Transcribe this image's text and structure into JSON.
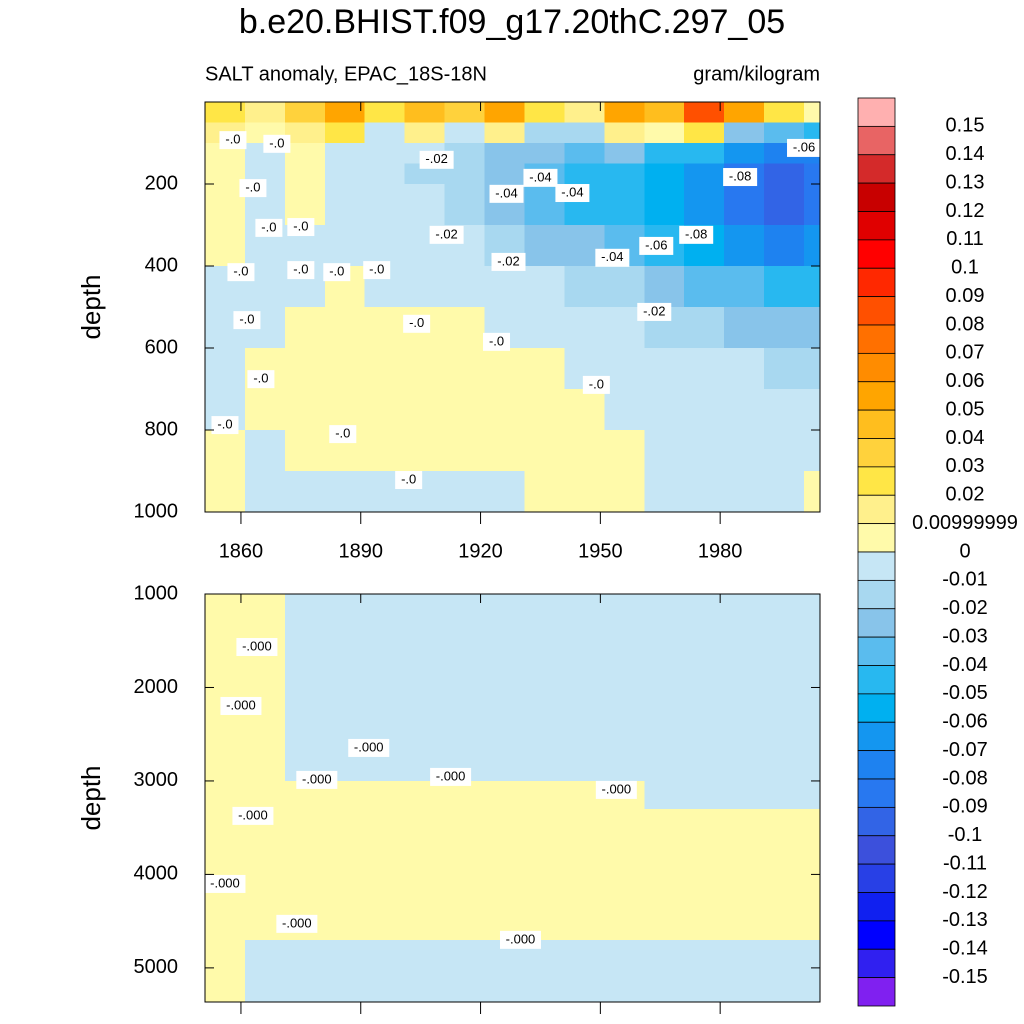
{
  "title": "b.e20.BHIST.f09_g17.20thC.297_05",
  "colorbar": {
    "levels": [
      0.15,
      0.14,
      0.13,
      0.12,
      0.11,
      0.1,
      0.09,
      0.08,
      0.07,
      0.06,
      0.05,
      0.04,
      0.03,
      0.02,
      {
        "value": 0.01,
        "label": "0.00999999"
      },
      0,
      -0.01,
      -0.02,
      -0.03,
      -0.04,
      -0.05,
      -0.06,
      -0.07,
      -0.08,
      -0.09,
      -0.1,
      -0.11,
      -0.12,
      -0.13,
      -0.14,
      -0.15
    ],
    "colors": [
      "#ffb0b0",
      "#e86464",
      "#d42a2a",
      "#c80000",
      "#e00000",
      "#ff0000",
      "#ff2800",
      "#ff5000",
      "#ff7000",
      "#ff8c00",
      "#ffa500",
      "#ffbe1e",
      "#ffd23c",
      "#ffe646",
      "#fff08c",
      "#fffaaa",
      "#c6e6f5",
      "#a8d8f0",
      "#88c4ea",
      "#5abcee",
      "#28b8f0",
      "#00b0f0",
      "#1496f0",
      "#1e82f0",
      "#2878f0",
      "#3264e6",
      "#3c50dc",
      "#2840e6",
      "#1020f0",
      "#0000ff",
      "#3020f0",
      "#8020f0"
    ]
  },
  "chart_data": [
    {
      "type": "contour",
      "subtitle_left": "SALT anomaly, EPAC_18S-18N",
      "subtitle_right": "gram/kilogram",
      "ylabel": "depth",
      "xlim": [
        1851,
        2005
      ],
      "xticks": [
        1860,
        1890,
        1920,
        1950,
        1980
      ],
      "ylim": [
        1000,
        0
      ],
      "yticks": [
        200,
        400,
        600,
        800,
        1000
      ],
      "x_edges": [
        1851,
        1861,
        1871,
        1881,
        1891,
        1901,
        1911,
        1921,
        1931,
        1941,
        1951,
        1961,
        1971,
        1981,
        1991,
        2001,
        2005
      ],
      "y_edges": [
        0,
        50,
        100,
        150,
        200,
        300,
        400,
        500,
        600,
        700,
        800,
        900,
        1000
      ],
      "z": [
        [
          0.02,
          0.01,
          0.03,
          0.05,
          0.02,
          0.04,
          0.03,
          0.05,
          0.02,
          0.01,
          0.05,
          0.04,
          0.08,
          0.05,
          0.02,
          0.005
        ],
        [
          0.01,
          0.005,
          0.01,
          0.02,
          -0.01,
          0.01,
          -0.01,
          0.01,
          -0.02,
          -0.02,
          0.01,
          0.005,
          0.02,
          -0.03,
          -0.04,
          -0.05
        ],
        [
          0.005,
          -0.005,
          0.005,
          -0.01,
          -0.01,
          -0.01,
          -0.02,
          -0.03,
          -0.03,
          -0.04,
          -0.03,
          -0.05,
          -0.05,
          -0.07,
          -0.08,
          -0.08
        ],
        [
          0.005,
          -0.005,
          0.005,
          -0.01,
          -0.01,
          -0.02,
          -0.02,
          -0.03,
          -0.04,
          -0.05,
          -0.05,
          -0.06,
          -0.07,
          -0.09,
          -0.1,
          -0.09
        ],
        [
          0.005,
          -0.005,
          0.005,
          -0.005,
          -0.01,
          -0.01,
          -0.02,
          -0.03,
          -0.04,
          -0.05,
          -0.05,
          -0.06,
          -0.07,
          -0.09,
          -0.1,
          -0.09
        ],
        [
          0.005,
          -0.005,
          -0.005,
          -0.005,
          -0.005,
          -0.01,
          -0.01,
          -0.02,
          -0.03,
          -0.03,
          -0.04,
          -0.05,
          -0.06,
          -0.07,
          -0.08,
          -0.07
        ],
        [
          -0.005,
          -0.005,
          -0.005,
          0.005,
          -0.005,
          -0.005,
          -0.01,
          -0.01,
          -0.01,
          -0.02,
          -0.02,
          -0.03,
          -0.04,
          -0.04,
          -0.05,
          -0.05
        ],
        [
          -0.005,
          -0.005,
          0.005,
          0.005,
          0.005,
          0.005,
          0.005,
          -0.005,
          -0.01,
          -0.01,
          -0.01,
          -0.02,
          -0.02,
          -0.03,
          -0.03,
          -0.03
        ],
        [
          -0.005,
          0.005,
          0.005,
          0.005,
          0.005,
          0.005,
          0.005,
          0.005,
          0.005,
          -0.005,
          -0.005,
          -0.01,
          -0.01,
          -0.01,
          -0.02,
          -0.02
        ],
        [
          -0.005,
          0.005,
          0.005,
          0.005,
          0.005,
          0.005,
          0.005,
          0.005,
          0.005,
          0.005,
          -0.005,
          -0.005,
          -0.005,
          -0.01,
          -0.01,
          -0.01
        ],
        [
          0.005,
          -0.005,
          0.005,
          0.005,
          0.005,
          0.005,
          0.005,
          0.005,
          0.005,
          0.005,
          0.005,
          -0.005,
          -0.005,
          -0.005,
          -0.005,
          -0.005
        ],
        [
          0.005,
          -0.005,
          -0.005,
          -0.005,
          -0.005,
          -0.005,
          -0.005,
          -0.005,
          0.005,
          0.005,
          0.005,
          -0.005,
          -0.005,
          -0.005,
          -0.005,
          0.005
        ]
      ],
      "contour_labels": [
        {
          "text": "-.0",
          "x": 1858,
          "y": 93
        },
        {
          "text": "-.0",
          "x": 1869,
          "y": 102
        },
        {
          "text": "-.0",
          "x": 1863,
          "y": 210
        },
        {
          "text": "-.0",
          "x": 1867,
          "y": 307
        },
        {
          "text": "-.0",
          "x": 1875,
          "y": 305
        },
        {
          "text": "-.0",
          "x": 1860,
          "y": 415
        },
        {
          "text": "-.0",
          "x": 1875,
          "y": 410
        },
        {
          "text": "-.0",
          "x": 1884,
          "y": 415
        },
        {
          "text": "-.0",
          "x": 1894,
          "y": 410
        },
        {
          "text": "-.0",
          "x": 1861.5,
          "y": 532
        },
        {
          "text": "-.0",
          "x": 1865,
          "y": 676
        },
        {
          "text": "-.0",
          "x": 1856,
          "y": 788
        },
        {
          "text": "-.0",
          "x": 1885.5,
          "y": 810
        },
        {
          "text": "-.0",
          "x": 1902,
          "y": 922
        },
        {
          "text": "-.0",
          "x": 1904,
          "y": 541
        },
        {
          "text": "-.0",
          "x": 1924,
          "y": 585
        },
        {
          "text": "-.0",
          "x": 1949,
          "y": 690
        },
        {
          "text": "-.02",
          "x": 1909,
          "y": 141
        },
        {
          "text": "-.02",
          "x": 1911.5,
          "y": 324
        },
        {
          "text": "-.02",
          "x": 1927,
          "y": 390
        },
        {
          "text": "-.02",
          "x": 1963.5,
          "y": 512
        },
        {
          "text": "-.04",
          "x": 1926.5,
          "y": 224
        },
        {
          "text": "-.04",
          "x": 1935,
          "y": 185
        },
        {
          "text": "-.04",
          "x": 1943,
          "y": 222
        },
        {
          "text": "-.04",
          "x": 1953,
          "y": 380
        },
        {
          "text": "-.06",
          "x": 1964,
          "y": 351
        },
        {
          "text": "-.06",
          "x": 2001,
          "y": 112
        },
        {
          "text": "-.08",
          "x": 1985,
          "y": 183
        },
        {
          "text": "-.08",
          "x": 1974,
          "y": 324
        }
      ]
    },
    {
      "type": "contour",
      "ylabel": "depth",
      "xlim": [
        1851,
        2005
      ],
      "ylim": [
        5365,
        1000
      ],
      "yticks": [
        1000,
        2000,
        3000,
        4000,
        5000
      ],
      "x_edges": [
        1851,
        1861,
        1871,
        1881,
        1891,
        1901,
        1911,
        1921,
        1931,
        1941,
        1951,
        1961,
        1971,
        1981,
        1991,
        2001,
        2005
      ],
      "y_edges": [
        1000,
        1500,
        2000,
        2500,
        3000,
        3300,
        4000,
        4700,
        5000,
        5365
      ],
      "z": [
        [
          0.0005,
          0.0005,
          -0.0005,
          -0.0005,
          -0.0005,
          -0.0005,
          -0.0005,
          -0.0005,
          -0.0005,
          -0.0005,
          -0.0005,
          -0.0005,
          -0.0005,
          -0.0005,
          -0.0005,
          -0.0005
        ],
        [
          0.0005,
          0.0005,
          -0.0005,
          -0.0005,
          -0.0005,
          -0.0005,
          -0.0005,
          -0.0005,
          -0.0005,
          -0.0005,
          -0.0005,
          -0.0005,
          -0.0005,
          -0.0005,
          -0.0005,
          -0.0005
        ],
        [
          0.0005,
          0.0005,
          -0.0005,
          -0.0005,
          -0.0005,
          -0.0005,
          -0.0005,
          -0.0005,
          -0.0005,
          -0.0005,
          -0.0005,
          -0.0005,
          -0.0005,
          -0.0005,
          -0.0005,
          -0.0005
        ],
        [
          0.0005,
          0.0005,
          -0.0005,
          -0.0005,
          -0.0005,
          -0.0005,
          -0.0005,
          -0.0005,
          -0.0005,
          -0.0005,
          -0.0005,
          -0.0005,
          -0.0005,
          -0.0005,
          -0.0005,
          -0.0005
        ],
        [
          0.0005,
          0.0005,
          0.0005,
          0.0005,
          0.0005,
          0.0005,
          0.0005,
          0.0005,
          0.0005,
          0.0005,
          0.0005,
          -0.0005,
          -0.0005,
          -0.0005,
          -0.0005,
          -0.0005
        ],
        [
          0.0005,
          0.0005,
          0.0005,
          0.0005,
          0.0005,
          0.0005,
          0.0005,
          0.0005,
          0.0005,
          0.0005,
          0.0005,
          0.0005,
          0.0005,
          0.0005,
          0.0005,
          0.0005
        ],
        [
          0.0005,
          0.0005,
          0.0005,
          0.0005,
          0.0005,
          0.0005,
          0.0005,
          0.0005,
          0.0005,
          0.0005,
          0.0005,
          0.0005,
          0.0005,
          0.0005,
          0.0005,
          0.0005
        ],
        [
          0.0005,
          -0.0005,
          -0.0005,
          -0.0005,
          -0.0005,
          -0.0005,
          -0.0005,
          -0.0005,
          -0.0005,
          -0.0005,
          -0.0005,
          -0.0005,
          -0.0005,
          -0.0005,
          -0.0005,
          -0.0005
        ],
        [
          0.0005,
          -0.0005,
          -0.0005,
          -0.0005,
          -0.0005,
          -0.0005,
          -0.0005,
          -0.0005,
          -0.0005,
          -0.0005,
          -0.0005,
          -0.0005,
          -0.0005,
          -0.0005,
          -0.0005,
          -0.0005
        ]
      ],
      "contour_labels": [
        {
          "text": "-.000",
          "x": 1864,
          "y": 1567
        },
        {
          "text": "-.000",
          "x": 1860,
          "y": 2198
        },
        {
          "text": "-.000",
          "x": 1863,
          "y": 3374
        },
        {
          "text": "-.000",
          "x": 1856,
          "y": 4102
        },
        {
          "text": "-.000",
          "x": 1874,
          "y": 4529
        },
        {
          "text": "-.000",
          "x": 1879,
          "y": 2989
        },
        {
          "text": "-.000",
          "x": 1892,
          "y": 2647
        },
        {
          "text": "-.000",
          "x": 1912.5,
          "y": 2957
        },
        {
          "text": "-.000",
          "x": 1954,
          "y": 3096
        },
        {
          "text": "-.000",
          "x": 1930,
          "y": 4700
        }
      ]
    }
  ]
}
